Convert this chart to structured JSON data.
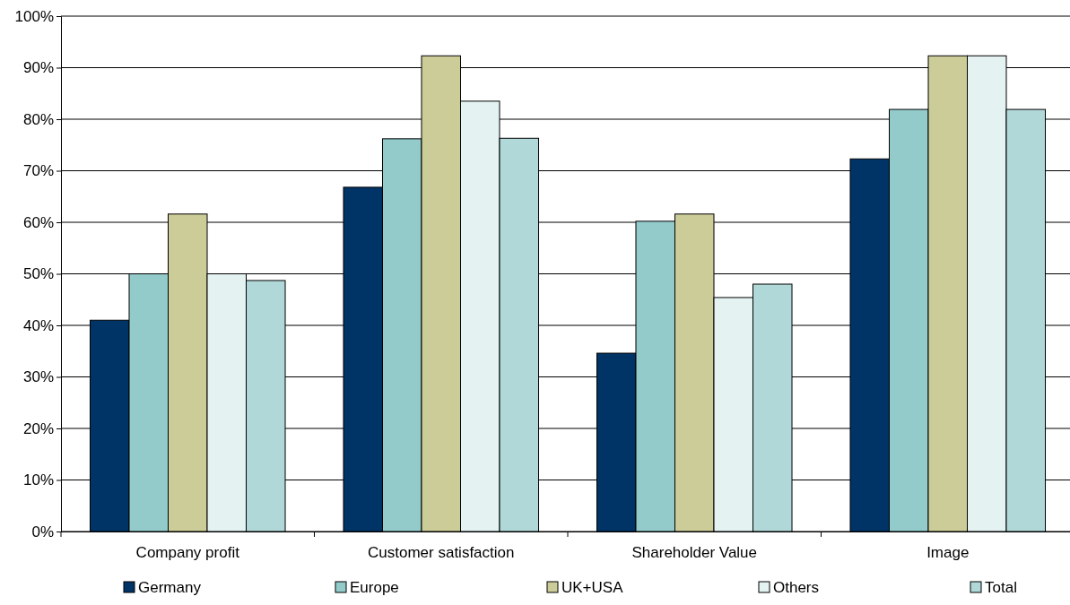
{
  "chart_data": {
    "type": "bar",
    "categories": [
      "Company profit",
      "Customer satisfaction",
      "Shareholder Value",
      "Image"
    ],
    "series": [
      {
        "name": "Germany",
        "color": "#003366",
        "values": [
          41,
          66.8,
          34.6,
          72.3
        ]
      },
      {
        "name": "Europe",
        "color": "#93cbcb",
        "values": [
          50,
          76.2,
          60.2,
          81.9
        ]
      },
      {
        "name": "UK+USA",
        "color": "#cccc99",
        "values": [
          61.6,
          92.3,
          61.6,
          92.3
        ]
      },
      {
        "name": "Others",
        "color": "#e4f2f2",
        "values": [
          50,
          83.5,
          45.4,
          92.3
        ]
      },
      {
        "name": "Total",
        "color": "#b0d8d8",
        "values": [
          48.7,
          76.3,
          48,
          81.9
        ]
      }
    ],
    "ylim": [
      0,
      100
    ],
    "yticks": [
      {
        "value": 0,
        "label": "0%"
      },
      {
        "value": 10,
        "label": "10%"
      },
      {
        "value": 20,
        "label": "20%"
      },
      {
        "value": 30,
        "label": "30%"
      },
      {
        "value": 40,
        "label": "40%"
      },
      {
        "value": 50,
        "label": "50%"
      },
      {
        "value": 60,
        "label": "60%"
      },
      {
        "value": 70,
        "label": "70%"
      },
      {
        "value": 80,
        "label": "80%"
      },
      {
        "value": 90,
        "label": "90%"
      },
      {
        "value": 100,
        "label": "100%"
      }
    ],
    "grid": "y",
    "legend": "bottom"
  }
}
